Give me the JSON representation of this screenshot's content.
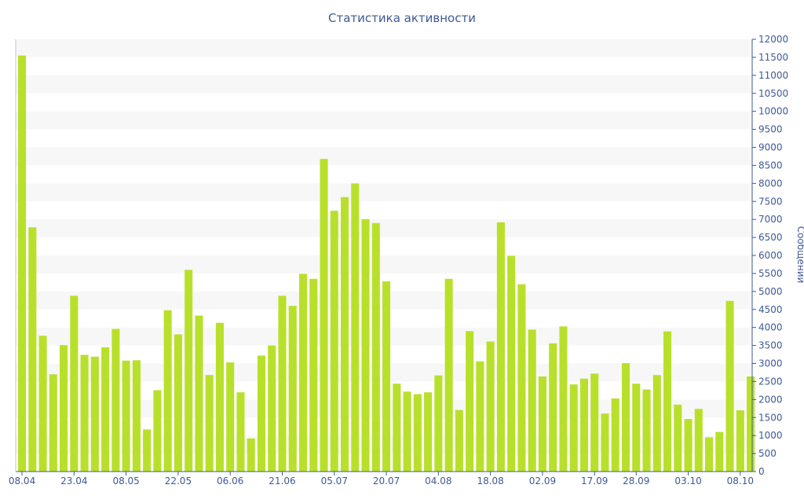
{
  "chart_data": {
    "type": "bar",
    "title": "Статистика активности",
    "xlabel": "",
    "ylabel": "Сообщений",
    "ylim": [
      0,
      12000
    ],
    "y_ticks": [
      0,
      500,
      1000,
      1500,
      2000,
      2500,
      3000,
      3500,
      4000,
      4500,
      5000,
      5500,
      6000,
      6500,
      7000,
      7500,
      8000,
      8500,
      9000,
      9500,
      10000,
      10500,
      11000,
      11500,
      12000
    ],
    "y_axis_side": "right",
    "x_tick_labels": [
      {
        "label": "08.04",
        "index": 0
      },
      {
        "label": "23.04",
        "index": 5
      },
      {
        "label": "08.05",
        "index": 10
      },
      {
        "label": "22.05",
        "index": 15
      },
      {
        "label": "06.06",
        "index": 20
      },
      {
        "label": "21.06",
        "index": 25
      },
      {
        "label": "05.07",
        "index": 30
      },
      {
        "label": "20.07",
        "index": 35
      },
      {
        "label": "04.08",
        "index": 40
      },
      {
        "label": "18.08",
        "index": 45
      },
      {
        "label": "02.09",
        "index": 50
      },
      {
        "label": "17.09",
        "index": 55
      },
      {
        "label": "28.09",
        "index": 59
      },
      {
        "label": "03.10",
        "index": 64
      },
      {
        "label": "08.10",
        "index": 69
      }
    ],
    "values": [
      11550,
      6780,
      3770,
      2700,
      3510,
      4880,
      3240,
      3190,
      3450,
      3960,
      3080,
      3090,
      1170,
      2260,
      4480,
      3810,
      5600,
      4330,
      2680,
      4130,
      3030,
      2200,
      920,
      3220,
      3500,
      4880,
      4600,
      5490,
      5350,
      8680,
      7240,
      7620,
      8000,
      7010,
      6900,
      5280,
      2440,
      2220,
      2150,
      2200,
      2670,
      5350,
      1710,
      3900,
      3060,
      3610,
      6920,
      5990,
      5200,
      3940,
      2640,
      3560,
      4030,
      2420,
      2580,
      2720,
      1610,
      2030,
      3010,
      2440,
      2280,
      2680,
      3890,
      1860,
      1460,
      1740,
      950,
      1100,
      4740,
      1700,
      2640
    ],
    "grid": true,
    "bar_color": "#b8e02b",
    "band_color": "#f7f7f7",
    "axis_color": "#3d5a94"
  }
}
